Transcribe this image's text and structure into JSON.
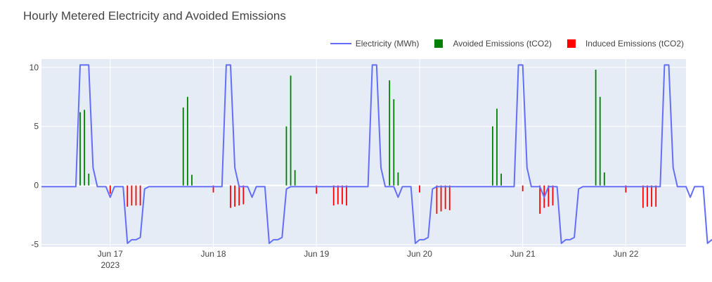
{
  "title": "Hourly Metered Electricity and Avoided Emissions",
  "legend": {
    "electricity": "Electricity (MWh)",
    "avoided": "Avoided Emissions (tCO2)",
    "induced": "Induced Emissions (tCO2)"
  },
  "colors": {
    "electricity": "#636efa",
    "avoided": "#008000",
    "induced": "#ff0000",
    "plot_bg": "#e5ecf6",
    "grid": "#ffffff"
  },
  "chart_data": {
    "type": "line+bar",
    "title": "Hourly Metered Electricity and Avoided Emissions",
    "x_range": [
      "2023-06-16 08:00",
      "2023-06-22 14:00"
    ],
    "y_range": [
      -5.2,
      10.7
    ],
    "y_ticks": [
      10,
      5,
      0,
      -5
    ],
    "x_ticks": [
      {
        "label": "Jun 17",
        "sublabel": "2023",
        "date": "2023-06-17 00:00"
      },
      {
        "label": "Jun 18",
        "sublabel": "",
        "date": "2023-06-18 00:00"
      },
      {
        "label": "Jun 19",
        "sublabel": "",
        "date": "2023-06-19 00:00"
      },
      {
        "label": "Jun 20",
        "sublabel": "",
        "date": "2023-06-20 00:00"
      },
      {
        "label": "Jun 21",
        "sublabel": "",
        "date": "2023-06-21 00:00"
      },
      {
        "label": "Jun 22",
        "sublabel": "",
        "date": "2023-06-22 00:00"
      }
    ],
    "grid": true,
    "legend_position": "top-right",
    "series": [
      {
        "name": "Electricity (MWh)",
        "kind": "line",
        "start": "2023-06-16 08:00",
        "step_hours": 1,
        "values": [
          -0.1,
          -0.1,
          -0.1,
          -0.1,
          -0.1,
          -0.1,
          -0.1,
          -0.1,
          -0.1,
          10.2,
          10.2,
          10.2,
          1.5,
          -0.1,
          -0.1,
          -0.1,
          -1.0,
          -0.1,
          -0.1,
          -0.1,
          -4.9,
          -4.6,
          -4.6,
          -4.4,
          -0.3,
          -0.1,
          -0.1,
          -0.1,
          -0.1,
          -0.1,
          -0.1,
          -0.1,
          -0.1,
          -0.1,
          -0.1,
          -0.1,
          -0.1,
          -0.1,
          -0.1,
          -0.1,
          -0.1,
          -0.1,
          -0.1,
          10.2,
          10.2,
          1.5,
          -0.1,
          -0.1,
          -0.1,
          -1.0,
          -0.1,
          -0.1,
          -0.1,
          -4.9,
          -4.6,
          -4.6,
          -4.4,
          -0.3,
          -0.1,
          -0.1,
          -0.1,
          -0.1,
          -0.1,
          -0.1,
          -0.1,
          -0.1,
          -0.1,
          -0.1,
          -0.1,
          -0.1,
          -0.1,
          -0.1,
          -0.1,
          -0.1,
          -0.1,
          -0.1,
          -0.1,
          10.2,
          10.2,
          1.5,
          -0.1,
          -0.1,
          -0.1,
          -1.0,
          -0.1,
          -0.1,
          -0.1,
          -4.9,
          -4.6,
          -4.6,
          -4.4,
          -0.3,
          -0.1,
          -0.1,
          -0.1,
          -0.1,
          -0.1,
          -0.1,
          -0.1,
          -0.1,
          -0.1,
          -0.1,
          -0.1,
          -0.1,
          -0.1,
          -0.1,
          -0.1,
          -0.1,
          -0.1,
          -0.1,
          -0.1,
          10.2,
          10.2,
          1.5,
          -0.1,
          -0.1,
          -0.1,
          -1.0,
          -0.1,
          -0.1,
          -0.1,
          -4.9,
          -4.6,
          -4.6,
          -4.4,
          -0.3,
          -0.1,
          -0.1,
          -0.1,
          -0.1,
          -0.1,
          -0.1,
          -0.1,
          -0.1,
          -0.1,
          -0.1,
          -0.1,
          -0.1,
          -0.1,
          -0.1,
          -0.1,
          -0.1,
          -0.1,
          -0.1,
          -0.1,
          10.2,
          10.2,
          1.5,
          -0.1,
          -0.1,
          -0.1,
          -1.0,
          -0.1,
          -0.1,
          -0.1,
          -4.9,
          -4.6,
          -4.6,
          -4.4,
          -0.3,
          -0.1,
          -0.1,
          -0.1,
          -0.1,
          -0.1,
          -0.1,
          -0.1,
          -0.1,
          -0.1,
          -0.1,
          -0.1,
          -0.1,
          -0.1,
          -0.1,
          -0.1,
          -0.1,
          -0.1,
          -0.1,
          -0.1,
          10.2,
          10.2,
          1.5,
          -0.1,
          -0.1,
          -0.1,
          -1.0,
          -0.1,
          -0.1,
          -0.1,
          -4.9,
          -4.6,
          -4.6,
          -4.4,
          -0.3,
          -0.1,
          -0.1,
          -0.1,
          -0.1,
          -0.1
        ]
      },
      {
        "name": "Avoided Emissions (tCO2)",
        "kind": "bar",
        "points": [
          {
            "t": "2023-06-16 17:00",
            "v": 6.2
          },
          {
            "t": "2023-06-16 18:00",
            "v": 6.4
          },
          {
            "t": "2023-06-16 19:00",
            "v": 1.0
          },
          {
            "t": "2023-06-17 17:00",
            "v": 6.6
          },
          {
            "t": "2023-06-17 18:00",
            "v": 7.5
          },
          {
            "t": "2023-06-17 19:00",
            "v": 0.9
          },
          {
            "t": "2023-06-18 17:00",
            "v": 5.0
          },
          {
            "t": "2023-06-18 18:00",
            "v": 9.3
          },
          {
            "t": "2023-06-18 19:00",
            "v": 1.3
          },
          {
            "t": "2023-06-19 17:00",
            "v": 8.9
          },
          {
            "t": "2023-06-19 18:00",
            "v": 7.3
          },
          {
            "t": "2023-06-19 19:00",
            "v": 1.1
          },
          {
            "t": "2023-06-20 17:00",
            "v": 5.0
          },
          {
            "t": "2023-06-20 18:00",
            "v": 6.5
          },
          {
            "t": "2023-06-20 19:00",
            "v": 1.0
          },
          {
            "t": "2023-06-21 17:00",
            "v": 9.8
          },
          {
            "t": "2023-06-21 18:00",
            "v": 7.5
          },
          {
            "t": "2023-06-21 19:00",
            "v": 1.1
          }
        ]
      },
      {
        "name": "Induced Emissions (tCO2)",
        "kind": "bar",
        "points": [
          {
            "t": "2023-06-17 00:00",
            "v": -0.7
          },
          {
            "t": "2023-06-17 04:00",
            "v": -1.8
          },
          {
            "t": "2023-06-17 05:00",
            "v": -1.7
          },
          {
            "t": "2023-06-17 06:00",
            "v": -1.7
          },
          {
            "t": "2023-06-17 07:00",
            "v": -1.7
          },
          {
            "t": "2023-06-18 00:00",
            "v": -0.6
          },
          {
            "t": "2023-06-18 04:00",
            "v": -1.9
          },
          {
            "t": "2023-06-18 05:00",
            "v": -1.8
          },
          {
            "t": "2023-06-18 06:00",
            "v": -1.7
          },
          {
            "t": "2023-06-18 07:00",
            "v": -1.6
          },
          {
            "t": "2023-06-19 00:00",
            "v": -0.7
          },
          {
            "t": "2023-06-19 04:00",
            "v": -1.7
          },
          {
            "t": "2023-06-19 05:00",
            "v": -1.6
          },
          {
            "t": "2023-06-19 06:00",
            "v": -1.6
          },
          {
            "t": "2023-06-19 07:00",
            "v": -1.7
          },
          {
            "t": "2023-06-20 00:00",
            "v": -0.6
          },
          {
            "t": "2023-06-20 04:00",
            "v": -2.4
          },
          {
            "t": "2023-06-20 05:00",
            "v": -2.2
          },
          {
            "t": "2023-06-20 06:00",
            "v": -2.0
          },
          {
            "t": "2023-06-20 07:00",
            "v": -2.1
          },
          {
            "t": "2023-06-21 00:00",
            "v": -0.5
          },
          {
            "t": "2023-06-21 04:00",
            "v": -2.4
          },
          {
            "t": "2023-06-21 05:00",
            "v": -1.9
          },
          {
            "t": "2023-06-21 06:00",
            "v": -1.8
          },
          {
            "t": "2023-06-21 07:00",
            "v": -1.7
          },
          {
            "t": "2023-06-22 00:00",
            "v": -0.6
          },
          {
            "t": "2023-06-22 04:00",
            "v": -1.9
          },
          {
            "t": "2023-06-22 05:00",
            "v": -1.8
          },
          {
            "t": "2023-06-22 06:00",
            "v": -1.8
          },
          {
            "t": "2023-06-22 07:00",
            "v": -1.8
          }
        ]
      }
    ]
  }
}
